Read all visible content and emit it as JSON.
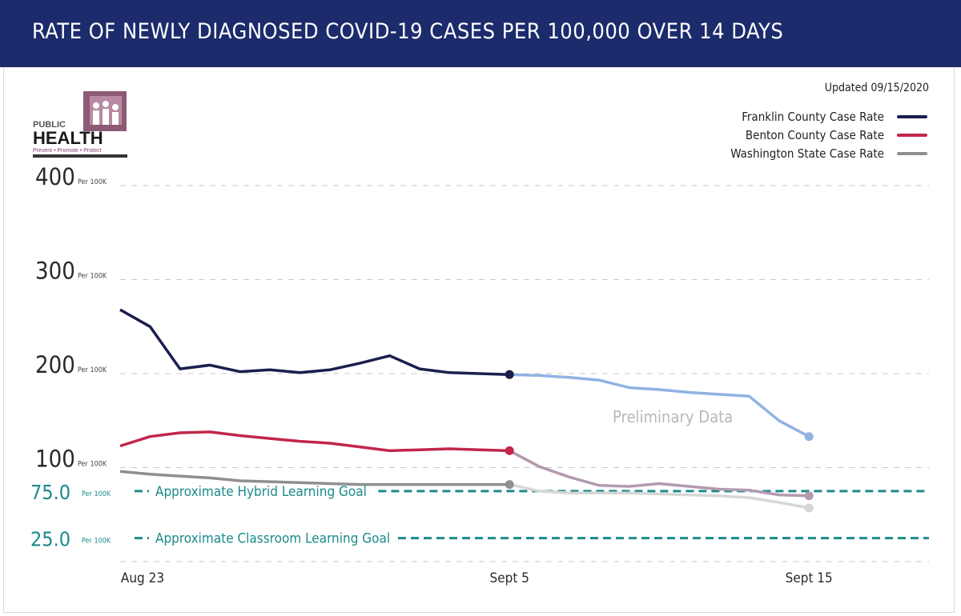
{
  "header": {
    "title": "RATE OF NEWLY DIAGNOSED COVID-19 CASES PER 100,000 OVER 14 DAYS"
  },
  "updated": "Updated 09/15/2020",
  "logo": {
    "line1": "PUBLIC",
    "line2": "HEALTH",
    "line3": "Prevent • Promote • Protect"
  },
  "chart_data": {
    "type": "line",
    "title": "RATE OF NEWLY DIAGNOSED COVID-19 CASES PER 100,000 OVER 14 DAYS",
    "xlabel": "",
    "ylabel": "",
    "x_ticks": [
      "Aug 23",
      "Sept 5",
      "Sept 15"
    ],
    "y_ticks": [
      {
        "value": 400,
        "label": "400",
        "unit": "Per 100K"
      },
      {
        "value": 300,
        "label": "300",
        "unit": "Per 100K"
      },
      {
        "value": 200,
        "label": "200",
        "unit": "Per 100K"
      },
      {
        "value": 100,
        "label": "100",
        "unit": "Per 100K"
      }
    ],
    "ylim": [
      0,
      400
    ],
    "grid": true,
    "legend_position": "top-right",
    "series": [
      {
        "name": "Franklin County Case Rate",
        "color": "#1a1f4e",
        "preliminary_color": "#8fb3e3",
        "x": [
          "Aug 23",
          "Aug 24",
          "Aug 25",
          "Aug 26",
          "Aug 27",
          "Aug 28",
          "Aug 29",
          "Aug 30",
          "Aug 31",
          "Sep 1",
          "Sep 2",
          "Sep 3",
          "Sep 4",
          "Sep 5",
          "Sep 6",
          "Sep 7",
          "Sep 8",
          "Sep 9",
          "Sep 10",
          "Sep 11",
          "Sep 12",
          "Sep 13",
          "Sep 14",
          "Sep 15"
        ],
        "values": [
          268,
          250,
          205,
          209,
          202,
          204,
          201,
          204,
          211,
          219,
          205,
          201,
          200,
          199,
          198,
          196,
          193,
          185,
          183,
          180,
          178,
          176,
          150,
          133
        ]
      },
      {
        "name": "Benton County Case Rate",
        "color": "#c0274a",
        "preliminary_color": "#b39ab0",
        "x": [
          "Aug 23",
          "Aug 24",
          "Aug 25",
          "Aug 26",
          "Aug 27",
          "Aug 28",
          "Aug 29",
          "Aug 30",
          "Aug 31",
          "Sep 1",
          "Sep 2",
          "Sep 3",
          "Sep 4",
          "Sep 5",
          "Sep 6",
          "Sep 7",
          "Sep 8",
          "Sep 9",
          "Sep 10",
          "Sep 11",
          "Sep 12",
          "Sep 13",
          "Sep 14",
          "Sep 15"
        ],
        "values": [
          123,
          133,
          137,
          138,
          134,
          131,
          128,
          126,
          122,
          118,
          119,
          120,
          119,
          118,
          101,
          90,
          81,
          80,
          83,
          80,
          77,
          76,
          71,
          70
        ]
      },
      {
        "name": "Washington State Case Rate",
        "color": "#8f8f8f",
        "preliminary_color": "#d6d6d6",
        "x": [
          "Aug 23",
          "Aug 24",
          "Aug 25",
          "Aug 26",
          "Aug 27",
          "Aug 28",
          "Aug 29",
          "Aug 30",
          "Aug 31",
          "Sep 1",
          "Sep 2",
          "Sep 3",
          "Sep 4",
          "Sep 5",
          "Sep 6",
          "Sep 7",
          "Sep 8",
          "Sep 9",
          "Sep 10",
          "Sep 11",
          "Sep 12",
          "Sep 13",
          "Sep 14",
          "Sep 15"
        ],
        "values": [
          96,
          93,
          91,
          89,
          86,
          85,
          84,
          83,
          82,
          82,
          82,
          82,
          82,
          82,
          75,
          73,
          73,
          73,
          72,
          71,
          70,
          68,
          63,
          57
        ]
      }
    ],
    "preliminary_from": "Sept 5",
    "annotations": [
      {
        "text": "Preliminary Data",
        "x": "Sep 9",
        "y": 153
      }
    ],
    "reference_lines": [
      {
        "value": 75,
        "label": "75.0",
        "unit": "Per 100K",
        "text": "Approximate Hybrid Learning Goal",
        "color": "#1c8a8a"
      },
      {
        "value": 25,
        "label": "25.0",
        "unit": "Per 100K",
        "text": "Approximate Classroom Learning Goal",
        "color": "#1c8a8a"
      }
    ]
  }
}
